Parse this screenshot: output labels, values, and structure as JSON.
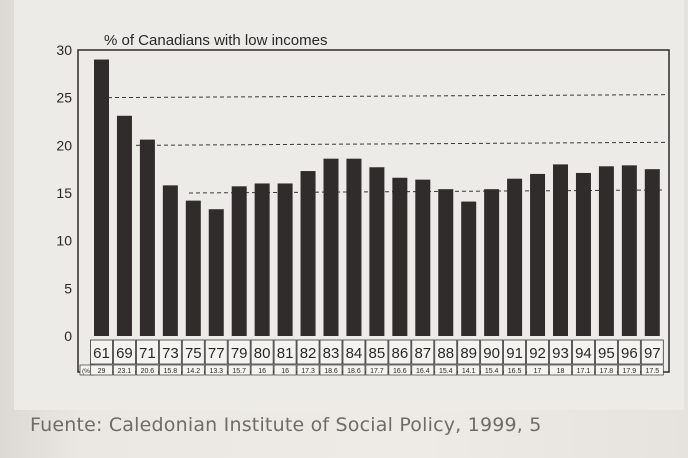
{
  "chart_data": {
    "type": "bar",
    "title": "% of Canadians with low incomes",
    "xlabel": "",
    "ylabel": "",
    "ylim": [
      0,
      30
    ],
    "yticks": [
      0,
      5,
      10,
      15,
      20,
      25,
      30
    ],
    "grid": "dashed reference lines at 15, 20 and 25",
    "units_marker": "(%)",
    "categories": [
      "61",
      "69",
      "71",
      "73",
      "75",
      "77",
      "79",
      "80",
      "81",
      "82",
      "83",
      "84",
      "85",
      "86",
      "87",
      "88",
      "89",
      "90",
      "91",
      "92",
      "93",
      "94",
      "95",
      "96",
      "97"
    ],
    "value_labels": [
      "29",
      "23.1",
      "20.6",
      "15.8",
      "14.2",
      "13.3",
      "15.7",
      "16",
      "16",
      "17.3",
      "18.6",
      "18.6",
      "17.7",
      "16.6",
      "16.4",
      "15.4",
      "14.1",
      "15.4",
      "16.5",
      "17",
      "18",
      "17.1",
      "17.8",
      "17.9",
      "17.5"
    ],
    "values": [
      29,
      23.1,
      20.6,
      15.8,
      14.2,
      13.3,
      15.7,
      16,
      16,
      17.3,
      18.6,
      18.6,
      17.7,
      16.6,
      16.4,
      15.4,
      14.1,
      15.4,
      16.5,
      17,
      18,
      17.1,
      17.8,
      17.9,
      17.5
    ],
    "colors": {
      "bar": "#2f2c2b",
      "frame": "#3a3836",
      "text": "#2a2827",
      "grid": "#3a3836",
      "background": "#ecebe8"
    }
  },
  "caption": "Fuente: Caledonian Institute of Social Policy, 1999, 5"
}
